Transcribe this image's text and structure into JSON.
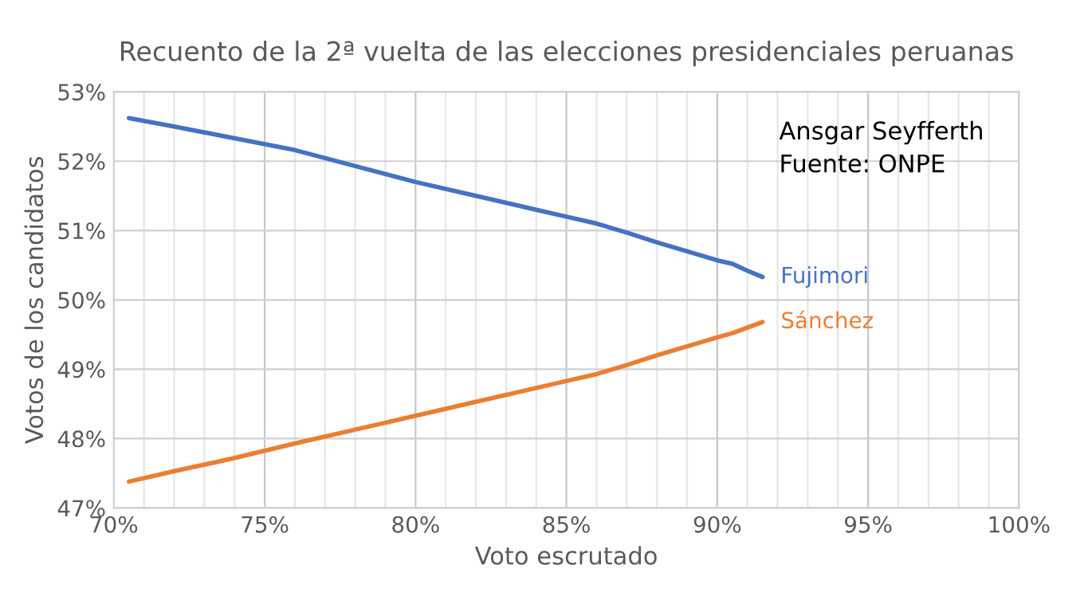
{
  "chart_data": {
    "type": "line",
    "title": "Recuento de la 2ª vuelta de las elecciones presidenciales peruanas",
    "xlabel": "Voto escrutado",
    "ylabel": "Votos de los candidatos",
    "series": [
      {
        "name": "Fujimori",
        "color": "#4472c4",
        "x": [
          70.5,
          72,
          74,
          76,
          78,
          80,
          82,
          84,
          85,
          86,
          87,
          88,
          89,
          90,
          90.5,
          91,
          91.5
        ],
        "values": [
          52.62,
          52.5,
          52.33,
          52.16,
          51.93,
          51.7,
          51.5,
          51.3,
          51.2,
          51.1,
          50.97,
          50.83,
          50.7,
          50.57,
          50.52,
          50.42,
          50.33
        ]
      },
      {
        "name": "Sánchez",
        "color": "#ed7d31",
        "x": [
          70.5,
          72,
          74,
          76,
          78,
          80,
          82,
          84,
          85,
          86,
          87,
          88,
          89,
          90,
          90.5,
          91,
          91.5
        ],
        "values": [
          47.38,
          47.53,
          47.72,
          47.93,
          48.13,
          48.33,
          48.53,
          48.73,
          48.83,
          48.93,
          49.06,
          49.2,
          49.33,
          49.46,
          49.52,
          49.6,
          49.68
        ]
      }
    ],
    "xlim": [
      70,
      100
    ],
    "ylim": [
      47,
      53
    ],
    "xticks": [
      {
        "value": 70,
        "label": "70%"
      },
      {
        "value": 71,
        "label": null
      },
      {
        "value": 72,
        "label": null
      },
      {
        "value": 73,
        "label": null
      },
      {
        "value": 74,
        "label": null
      },
      {
        "value": 75,
        "label": "75%"
      },
      {
        "value": 76,
        "label": null
      },
      {
        "value": 77,
        "label": null
      },
      {
        "value": 78,
        "label": null
      },
      {
        "value": 79,
        "label": null
      },
      {
        "value": 80,
        "label": "80%"
      },
      {
        "value": 81,
        "label": null
      },
      {
        "value": 82,
        "label": null
      },
      {
        "value": 83,
        "label": null
      },
      {
        "value": 84,
        "label": null
      },
      {
        "value": 85,
        "label": "85%"
      },
      {
        "value": 86,
        "label": null
      },
      {
        "value": 87,
        "label": null
      },
      {
        "value": 88,
        "label": null
      },
      {
        "value": 89,
        "label": null
      },
      {
        "value": 90,
        "label": "90%"
      },
      {
        "value": 91,
        "label": null
      },
      {
        "value": 92,
        "label": null
      },
      {
        "value": 93,
        "label": null
      },
      {
        "value": 94,
        "label": null
      },
      {
        "value": 95,
        "label": "95%"
      },
      {
        "value": 96,
        "label": null
      },
      {
        "value": 97,
        "label": null
      },
      {
        "value": 98,
        "label": null
      },
      {
        "value": 99,
        "label": null
      },
      {
        "value": 100,
        "label": "100%"
      }
    ],
    "yticks": [
      {
        "value": 47,
        "label": "47%"
      },
      {
        "value": 48,
        "label": "48%"
      },
      {
        "value": 49,
        "label": "49%"
      },
      {
        "value": 50,
        "label": "50%"
      },
      {
        "value": 51,
        "label": "51%"
      },
      {
        "value": 52,
        "label": "52%"
      },
      {
        "value": 53,
        "label": "53%"
      }
    ],
    "grid": true,
    "legend": false,
    "marker": "none",
    "line_style": "solid",
    "annotations": [
      "Ansgar Seyfferth\nFuente: ONPE"
    ]
  }
}
